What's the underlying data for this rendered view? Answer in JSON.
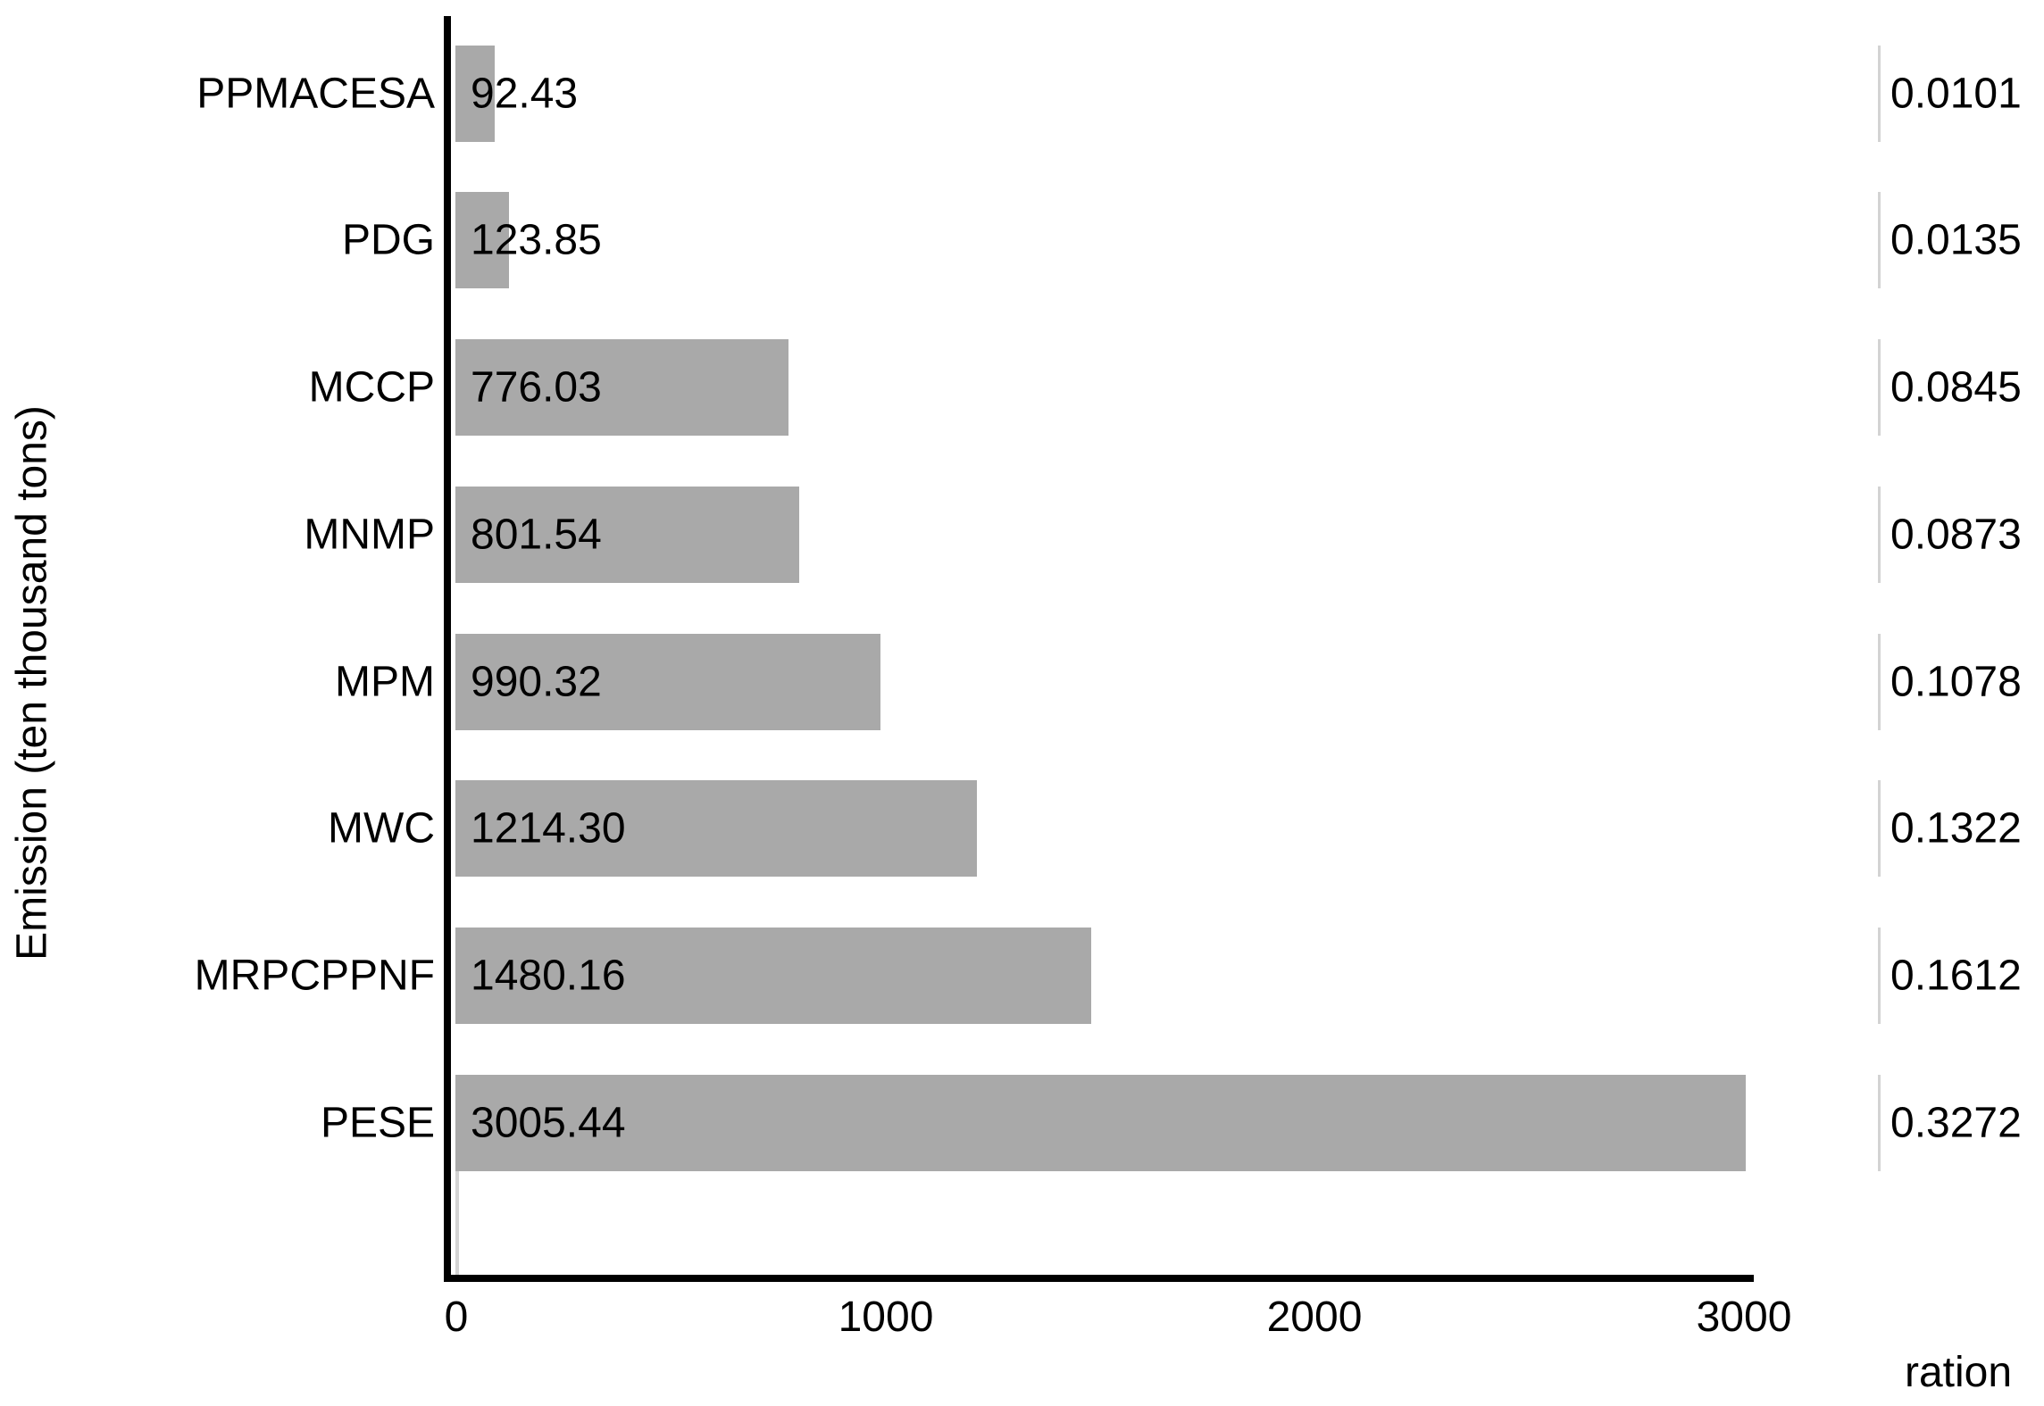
{
  "chart_data": {
    "type": "bar",
    "orientation": "horizontal",
    "title": "",
    "categories": [
      "PPMACESA",
      "PDG",
      "MCCP",
      "MNMP",
      "MPM",
      "MWC",
      "MRPCPPNF",
      "PESE"
    ],
    "series": [
      {
        "name": "Emission",
        "values": [
          92.43,
          123.85,
          776.03,
          801.54,
          990.32,
          1214.3,
          1480.16,
          3005.44
        ],
        "value_labels": [
          "92.43",
          "123.85",
          "776.03",
          "801.54",
          "990.32",
          "1214.30",
          "1480.16",
          "3005.44"
        ]
      },
      {
        "name": "ration",
        "values": [
          0.0101,
          0.0135,
          0.0845,
          0.0873,
          0.1078,
          0.1322,
          0.1612,
          0.3272
        ],
        "value_labels": [
          "0.0101",
          "0.0135",
          "0.0845",
          "0.0873",
          "0.1078",
          "0.1322",
          "0.1612",
          "0.3272"
        ]
      }
    ],
    "ylabel": "Emission (ten thousand tons)",
    "secondary_axis_label": "ration",
    "x_ticks": [
      "0",
      "1000",
      "2000",
      "3000"
    ],
    "x_tick_values": [
      0,
      1000,
      2000,
      3000
    ],
    "xlim": [
      0,
      3000
    ],
    "grid": false,
    "legend": "none",
    "bar_color": "#a9a9a9",
    "tick_segment_color": "#d3d3d3",
    "axis_color": "#000000",
    "text_color": "#000000",
    "background_color": "#ffffff"
  }
}
